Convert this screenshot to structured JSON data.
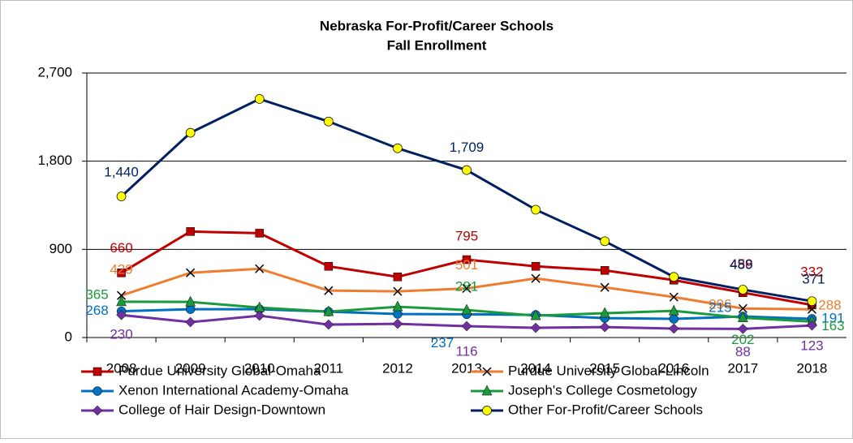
{
  "chart_data": {
    "type": "line",
    "title": "Nebraska For-Profit/Career Schools",
    "subtitle": "Fall Enrollment",
    "categories": [
      "2008",
      "2009",
      "2010",
      "2011",
      "2012",
      "2013",
      "2014",
      "2015",
      "2016",
      "2017",
      "2018"
    ],
    "ylim": [
      0,
      2700
    ],
    "yticks": [
      0,
      900,
      {
        "value": 1800,
        "label": "1,800"
      },
      {
        "value": 2700,
        "label": "2,700"
      }
    ],
    "grid": true,
    "legend": "bottom",
    "series": [
      {
        "name": "Purdue University Global-Omaha",
        "color": "#c00000",
        "marker": "square",
        "values": [
          660,
          1082,
          1065,
          727,
          619,
          795,
          727,
          685,
          586,
          458,
          332
        ],
        "value_labels": [
          "660",
          null,
          null,
          null,
          null,
          "795",
          null,
          null,
          null,
          "458",
          "332"
        ]
      },
      {
        "name": "Purdue University Global-Lincoln",
        "color": "#ee7d31",
        "marker": "x",
        "values": [
          429,
          661,
          702,
          479,
          471,
          501,
          603,
          512,
          413,
          296,
          288
        ],
        "value_labels": [
          "429",
          null,
          null,
          null,
          null,
          "501",
          null,
          null,
          null,
          "296",
          "288"
        ]
      },
      {
        "name": "Xenon International Academy-Omaha",
        "color": "#0070c0",
        "marker": "circle",
        "values": [
          268,
          289,
          289,
          264,
          240,
          237,
          231,
          198,
          190,
          215,
          191
        ],
        "value_labels": [
          "268",
          null,
          null,
          null,
          null,
          "237",
          null,
          null,
          null,
          "215",
          "191"
        ]
      },
      {
        "name": "Joseph's College Cosmetology",
        "color": "#1a9a3b",
        "marker": "triangle",
        "values": [
          365,
          363,
          305,
          264,
          314,
          281,
          223,
          248,
          272,
          202,
          163
        ],
        "value_labels": [
          "365",
          null,
          null,
          null,
          null,
          "281",
          null,
          null,
          null,
          "202",
          "163"
        ]
      },
      {
        "name": "College of Hair Design-Downtown",
        "color": "#7030a0",
        "marker": "diamond",
        "values": [
          230,
          157,
          223,
          132,
          140,
          116,
          99,
          107,
          91,
          88,
          123
        ],
        "value_labels": [
          "230",
          null,
          null,
          null,
          null,
          "116",
          null,
          null,
          null,
          "88",
          "123"
        ]
      },
      {
        "name": "Other For-Profit/Career Schools",
        "color": "#002060",
        "marker": "circle-yellow",
        "values": [
          1440,
          2090,
          2435,
          2205,
          1932,
          1709,
          1305,
          983,
          619,
          489,
          371
        ],
        "value_labels": [
          "1,440",
          null,
          null,
          null,
          null,
          "1,709",
          null,
          null,
          null,
          "489",
          "371"
        ]
      }
    ]
  }
}
